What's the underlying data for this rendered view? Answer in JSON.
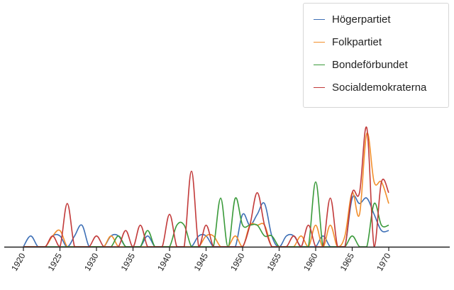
{
  "chart_data": {
    "type": "line",
    "title": "",
    "xlabel": "",
    "ylabel": "",
    "xlim": [
      1920,
      1970
    ],
    "ylim": [
      0,
      13
    ],
    "grid": false,
    "legend_position": "top-right",
    "x_ticks": [
      1920,
      1925,
      1930,
      1935,
      1940,
      1945,
      1950,
      1955,
      1960,
      1965,
      1970
    ],
    "x": [
      1920,
      1921,
      1922,
      1923,
      1924,
      1925,
      1926,
      1927,
      1928,
      1929,
      1930,
      1931,
      1932,
      1933,
      1934,
      1935,
      1936,
      1937,
      1938,
      1939,
      1940,
      1941,
      1942,
      1943,
      1944,
      1945,
      1946,
      1947,
      1948,
      1949,
      1950,
      1951,
      1952,
      1953,
      1954,
      1955,
      1956,
      1957,
      1958,
      1959,
      1960,
      1961,
      1962,
      1963,
      1964,
      1965,
      1966,
      1967,
      1968,
      1969,
      1970
    ],
    "series": [
      {
        "name": "Högerpartiet",
        "color": "#3d6fb6",
        "values": [
          0,
          1,
          0,
          0,
          1,
          1,
          0,
          1,
          2,
          0,
          0,
          0,
          1,
          1,
          0,
          0,
          0,
          1,
          0,
          0,
          0,
          0,
          0,
          0,
          1,
          1,
          0,
          0,
          0,
          0,
          3,
          2,
          3,
          4,
          1,
          0,
          1,
          1,
          0,
          0,
          0,
          1,
          0,
          0,
          0,
          4.5,
          4,
          4.5,
          3,
          1.5,
          1.5
        ]
      },
      {
        "name": "Folkpartiet",
        "color": "#f28e2b",
        "values": [
          0,
          0,
          0,
          0,
          1,
          1.5,
          0,
          0,
          0,
          0,
          0,
          0,
          1,
          0,
          0,
          0,
          0,
          0,
          0,
          0,
          0,
          0,
          0,
          0,
          0,
          1,
          1,
          0,
          0,
          1,
          0,
          2,
          2,
          2,
          0,
          0,
          0,
          0,
          1,
          0,
          2,
          0,
          2,
          0,
          1,
          5,
          3,
          10.5,
          6,
          6,
          4
        ]
      },
      {
        "name": "Bondeförbundet",
        "color": "#3a9a3a",
        "values": [
          0,
          0,
          0,
          0,
          0,
          0,
          0,
          0,
          0,
          0,
          0,
          0,
          0,
          1,
          0,
          0,
          0,
          1.5,
          0,
          0,
          0,
          2,
          2,
          0,
          0,
          0,
          0,
          4.5,
          0,
          4.5,
          2,
          2,
          2,
          1,
          1,
          0,
          0,
          0,
          0,
          0,
          6,
          0,
          0,
          0,
          0,
          1,
          0,
          0,
          4,
          2,
          2
        ]
      },
      {
        "name": "Socialdemokraterna",
        "color": "#c23a3a",
        "values": [
          0,
          0,
          0,
          0,
          1,
          0,
          4,
          0,
          0,
          0,
          1,
          0,
          0,
          0,
          1.5,
          0,
          2,
          0,
          0,
          0,
          3,
          0,
          0,
          7,
          0,
          2,
          0,
          0,
          0,
          0,
          0,
          2,
          5,
          2,
          0,
          0,
          0,
          1,
          0,
          2,
          0,
          0,
          4.5,
          0,
          0,
          5,
          5,
          11,
          0,
          6,
          5
        ]
      }
    ]
  }
}
